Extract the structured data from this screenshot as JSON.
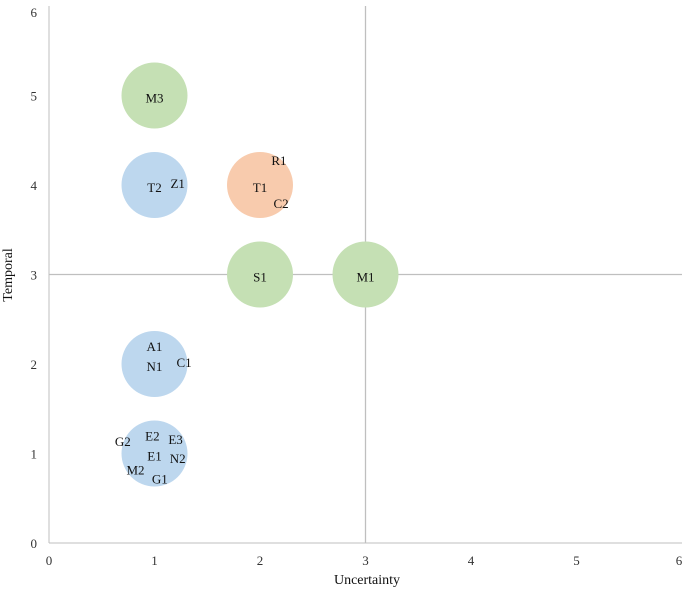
{
  "chart_data": {
    "type": "scatter",
    "title": "",
    "xlabel": "Uncertainty",
    "ylabel": "Temporal",
    "xlim": [
      0,
      6
    ],
    "ylim": [
      0,
      6
    ],
    "xticks": [
      "0",
      "1",
      "2",
      "3",
      "4",
      "5",
      "6"
    ],
    "yticks": [
      "0",
      "1",
      "2",
      "3",
      "4",
      "5",
      "6"
    ],
    "grid": false,
    "reference_lines": {
      "x": 3,
      "y": 3
    },
    "colors": {
      "blue": "#bdd7ee",
      "green": "#c5e0b4",
      "orange": "#f8cbad",
      "axis": "#bfbfbf"
    },
    "points": [
      {
        "x": 1,
        "y": 5,
        "color": "green"
      },
      {
        "x": 1,
        "y": 4,
        "color": "blue"
      },
      {
        "x": 2,
        "y": 4,
        "color": "orange"
      },
      {
        "x": 2,
        "y": 3,
        "color": "green"
      },
      {
        "x": 3,
        "y": 3,
        "color": "green"
      },
      {
        "x": 1,
        "y": 2,
        "color": "blue"
      },
      {
        "x": 1,
        "y": 1,
        "color": "blue"
      }
    ],
    "labels": [
      {
        "text": "M3",
        "x": 1.0,
        "y": 4.98
      },
      {
        "text": "T2",
        "x": 1.0,
        "y": 3.98
      },
      {
        "text": "Z1",
        "x": 1.22,
        "y": 4.02
      },
      {
        "text": "R1",
        "x": 2.18,
        "y": 4.28
      },
      {
        "text": "T1",
        "x": 2.0,
        "y": 3.98
      },
      {
        "text": "C2",
        "x": 2.2,
        "y": 3.8
      },
      {
        "text": "S1",
        "x": 2.0,
        "y": 2.98
      },
      {
        "text": "M1",
        "x": 3.0,
        "y": 2.98
      },
      {
        "text": "A1",
        "x": 1.0,
        "y": 2.2
      },
      {
        "text": "N1",
        "x": 1.0,
        "y": 1.98
      },
      {
        "text": "C1",
        "x": 1.28,
        "y": 2.02
      },
      {
        "text": "E2",
        "x": 0.98,
        "y": 1.2
      },
      {
        "text": "G2",
        "x": 0.7,
        "y": 1.14
      },
      {
        "text": "E3",
        "x": 1.2,
        "y": 1.16
      },
      {
        "text": "E1",
        "x": 1.0,
        "y": 0.98
      },
      {
        "text": "N2",
        "x": 1.22,
        "y": 0.95
      },
      {
        "text": "M2",
        "x": 0.82,
        "y": 0.82
      },
      {
        "text": "G1",
        "x": 1.05,
        "y": 0.72
      }
    ]
  }
}
